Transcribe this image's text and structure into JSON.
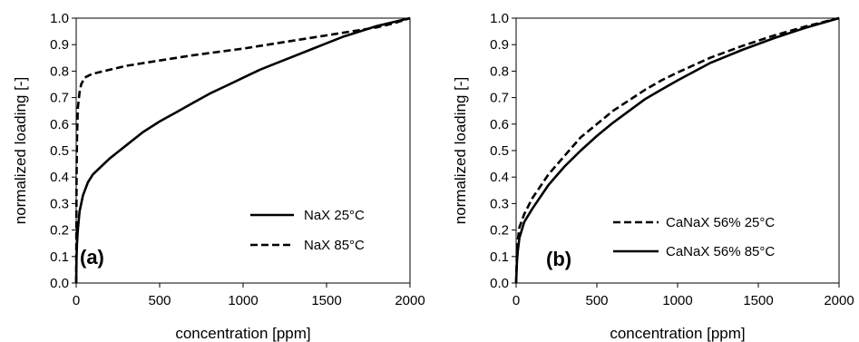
{
  "chart_data": [
    {
      "type": "line",
      "panel_label": "(a)",
      "xlabel": "concentration [ppm]",
      "ylabel": "normalized loading [-]",
      "xlim": [
        0,
        2000
      ],
      "ylim": [
        0,
        1.0
      ],
      "xticks": [
        "0",
        "500",
        "1000",
        "1500",
        "2000"
      ],
      "yticks": [
        "0.0",
        "0.1",
        "0.2",
        "0.3",
        "0.4",
        "0.5",
        "0.6",
        "0.7",
        "0.8",
        "0.9",
        "1.0"
      ],
      "grid": false,
      "legend_position": "bottom-right",
      "series": [
        {
          "name": "NaX 25°C",
          "style": "solid",
          "x": [
            0,
            2,
            5,
            10,
            20,
            40,
            70,
            100,
            150,
            200,
            300,
            400,
            500,
            600,
            700,
            800,
            900,
            1000,
            1100,
            1200,
            1300,
            1400,
            1500,
            1600,
            1700,
            1800,
            1900,
            2000
          ],
          "y": [
            0,
            0.1,
            0.15,
            0.2,
            0.27,
            0.33,
            0.38,
            0.41,
            0.44,
            0.47,
            0.52,
            0.57,
            0.61,
            0.645,
            0.68,
            0.715,
            0.745,
            0.775,
            0.805,
            0.83,
            0.855,
            0.88,
            0.905,
            0.93,
            0.95,
            0.97,
            0.985,
            1.0
          ]
        },
        {
          "name": "NaX 85°C",
          "style": "dashed",
          "x": [
            0,
            2,
            5,
            10,
            20,
            30,
            50,
            80,
            100,
            200,
            300,
            400,
            500,
            700,
            1000,
            1200,
            1500,
            1700,
            1800,
            1900,
            2000
          ],
          "y": [
            0,
            0.4,
            0.55,
            0.66,
            0.72,
            0.75,
            0.775,
            0.785,
            0.79,
            0.805,
            0.82,
            0.83,
            0.84,
            0.86,
            0.885,
            0.905,
            0.935,
            0.955,
            0.965,
            0.98,
            1.0
          ]
        }
      ]
    },
    {
      "type": "line",
      "panel_label": "(b)",
      "xlabel": "concentration [ppm]",
      "ylabel": "normalized loading [-]",
      "xlim": [
        0,
        2000
      ],
      "ylim": [
        0,
        1.0
      ],
      "xticks": [
        "0",
        "500",
        "1000",
        "1500",
        "2000"
      ],
      "yticks": [
        "0.0",
        "0.1",
        "0.2",
        "0.3",
        "0.4",
        "0.5",
        "0.6",
        "0.7",
        "0.8",
        "0.9",
        "1.0"
      ],
      "grid": false,
      "legend_position": "bottom-center",
      "series": [
        {
          "name": "CaNaX 56% 25°C",
          "style": "dashed",
          "x": [
            0,
            5,
            10,
            20,
            50,
            100,
            200,
            300,
            400,
            500,
            600,
            700,
            800,
            900,
            1000,
            1200,
            1400,
            1600,
            1800,
            2000
          ],
          "y": [
            0,
            0.12,
            0.16,
            0.21,
            0.26,
            0.32,
            0.41,
            0.48,
            0.55,
            0.6,
            0.65,
            0.69,
            0.73,
            0.765,
            0.795,
            0.85,
            0.895,
            0.935,
            0.97,
            1.0
          ]
        },
        {
          "name": "CaNaX 56% 85°C",
          "style": "solid",
          "x": [
            0,
            5,
            10,
            20,
            50,
            100,
            200,
            300,
            400,
            500,
            600,
            700,
            800,
            900,
            1000,
            1200,
            1400,
            1600,
            1800,
            2000
          ],
          "y": [
            0,
            0.08,
            0.12,
            0.17,
            0.23,
            0.28,
            0.37,
            0.44,
            0.5,
            0.555,
            0.605,
            0.65,
            0.695,
            0.73,
            0.765,
            0.83,
            0.88,
            0.925,
            0.965,
            1.0
          ]
        }
      ]
    }
  ]
}
